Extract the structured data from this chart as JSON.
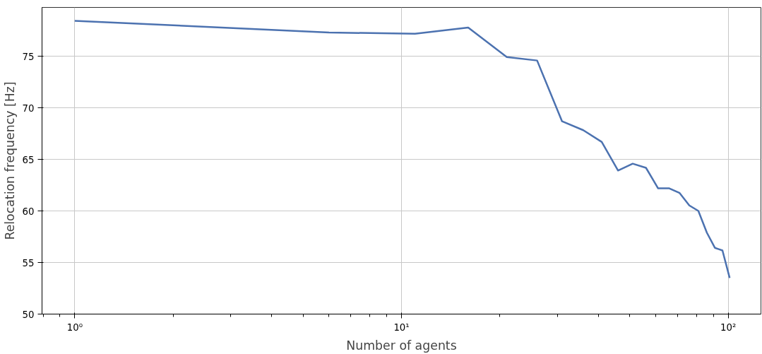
{
  "chart_data": {
    "type": "line",
    "xlabel": "Number of agents",
    "ylabel": "Relocation frequency [Hz]",
    "x": [
      1,
      6,
      11,
      16,
      21,
      26,
      31,
      36,
      41,
      46,
      51,
      56,
      61,
      66,
      71,
      76,
      81,
      86,
      91,
      96,
      101
    ],
    "series": [
      {
        "color": "#4c72b0",
        "values": [
          78.45,
          77.32,
          77.19,
          77.79,
          74.93,
          74.6,
          68.7,
          67.84,
          66.7,
          63.93,
          64.59,
          64.19,
          62.2,
          62.2,
          61.74,
          60.54,
          60.01,
          57.9,
          56.43,
          56.17,
          53.5
        ]
      }
    ],
    "log": "x",
    "xlim": [
      0.794,
      125.9
    ],
    "ylim": [
      50,
      79.75
    ],
    "xticks": [
      {
        "value": 1,
        "label": "10⁰"
      },
      {
        "value": 10,
        "label": "10¹"
      },
      {
        "value": 100,
        "label": "10²"
      }
    ],
    "yticks": [
      50,
      55,
      60,
      65,
      70,
      75
    ],
    "grid": true,
    "marker": "none",
    "line_style": "solid"
  }
}
